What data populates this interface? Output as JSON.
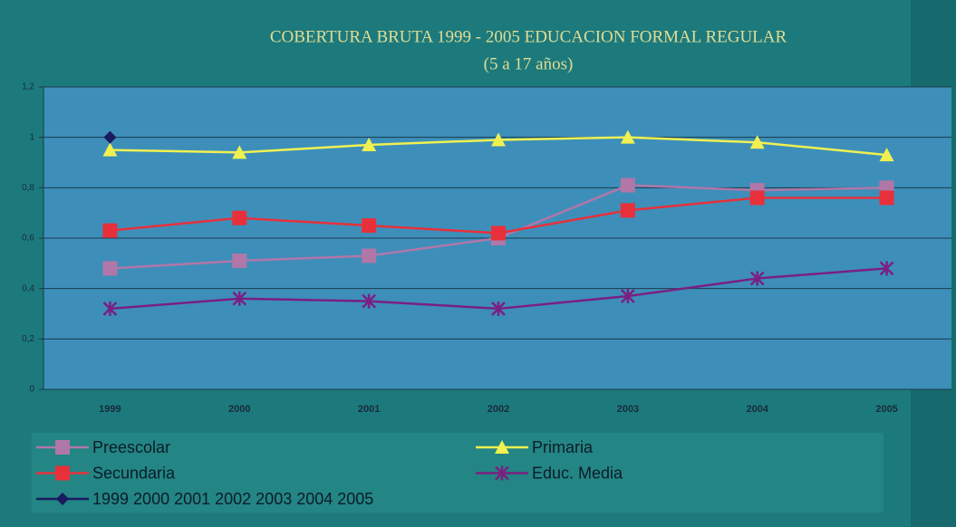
{
  "chart_data": {
    "type": "line",
    "title": "COBERTURA BRUTA 1999 - 2005 EDUCACION FORMAL REGULAR",
    "subtitle": "(5 a 17 años)",
    "categories": [
      "1999",
      "2000",
      "2001",
      "2002",
      "2003",
      "2004",
      "2005"
    ],
    "series": [
      {
        "name": "Preescolar",
        "color": "#b077a8",
        "marker": "square",
        "values": [
          0.48,
          0.51,
          0.53,
          0.6,
          0.81,
          0.79,
          0.8
        ]
      },
      {
        "name": "Primaria",
        "color": "#f0f050",
        "marker": "triangle",
        "values": [
          0.95,
          0.94,
          0.97,
          0.99,
          1.0,
          0.98,
          0.93
        ]
      },
      {
        "name": "Secundaria",
        "color": "#e8303a",
        "marker": "square",
        "values": [
          0.63,
          0.68,
          0.65,
          0.62,
          0.71,
          0.76,
          0.76
        ]
      },
      {
        "name": "Educ. Media",
        "color": "#7a2080",
        "marker": "asterisk",
        "values": [
          0.32,
          0.36,
          0.35,
          0.32,
          0.37,
          0.44,
          0.48
        ]
      },
      {
        "name": "1999 2000 2001 2002 2003 2004 2005",
        "color": "#1a1a60",
        "marker": "diamond",
        "values": [
          1.0,
          null,
          null,
          null,
          null,
          null,
          null
        ]
      }
    ],
    "ylim": [
      0,
      1.2
    ],
    "yticks": [
      0,
      {
        "value": 0.2,
        "label": "0,2"
      },
      {
        "value": 0.4,
        "label": "0,4"
      },
      {
        "value": 0.6,
        "label": "0,6"
      },
      {
        "value": 0.8,
        "label": "0,8"
      },
      1,
      {
        "value": 1.2,
        "label": "1,2"
      }
    ],
    "grid": true,
    "legend": "bottom"
  }
}
